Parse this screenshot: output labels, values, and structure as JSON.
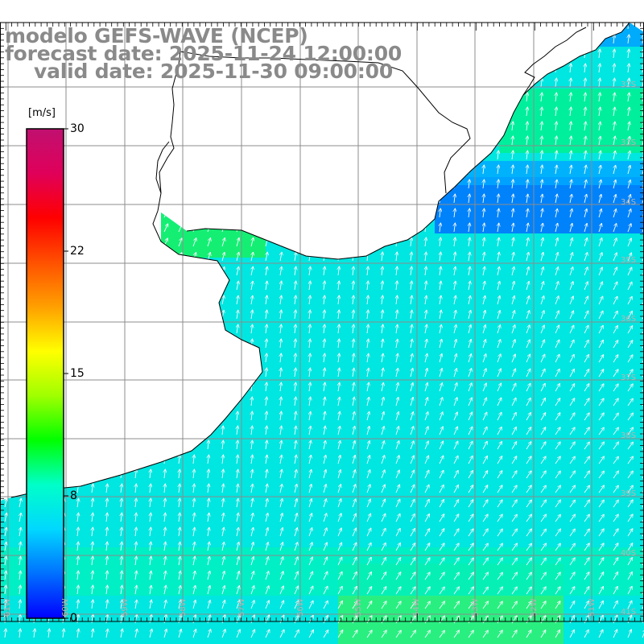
{
  "title": {
    "line1": "modelo GEFS-WAVE (NCEP)",
    "line2": "forecast date: 2025-11-24 12:00:00",
    "line3": "valid date: 2025-11-30 09:00:00"
  },
  "colorbar": {
    "unit": "[m/s]",
    "ticks": [
      {
        "label": "30",
        "value": 30
      },
      {
        "label": "22",
        "value": 22
      },
      {
        "label": "15",
        "value": 15
      },
      {
        "label": "8",
        "value": 8
      },
      {
        "label": "0",
        "value": 0
      }
    ],
    "colors": [
      "#0000ff",
      "#0070ff",
      "#00d8ff",
      "#00ffc8",
      "#00ff00",
      "#a0ff00",
      "#ffff00",
      "#ffa000",
      "#ff5000",
      "#ff0000",
      "#e0005a",
      "#c01070"
    ]
  },
  "map": {
    "lat_labels": [
      "32S",
      "33S",
      "34S",
      "35S",
      "36S",
      "37S",
      "38S",
      "39S",
      "40S",
      "41S"
    ],
    "lon_labels": [
      "61W",
      "60W",
      "59W",
      "58W",
      "57W",
      "56W",
      "55W",
      "54W",
      "53W",
      "52W",
      "51W"
    ]
  },
  "colors": {
    "land": "#ffffff",
    "coast": "#000000",
    "grid": "#8c8c8c",
    "arrows": "#ffffff",
    "label_gray": "#8a8a8a"
  }
}
